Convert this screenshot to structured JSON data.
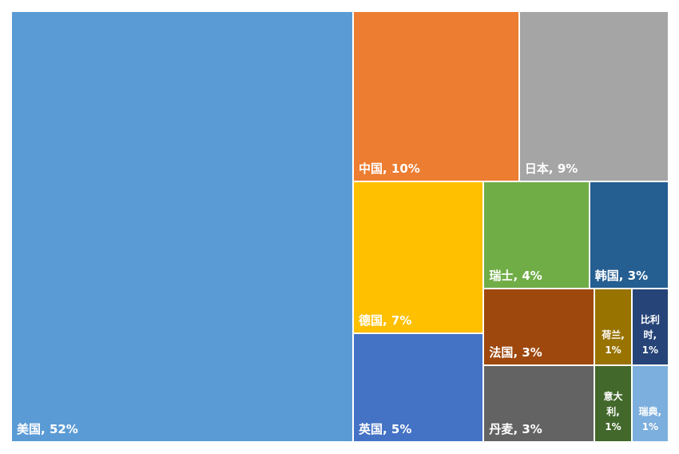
{
  "chart_data": {
    "type": "treemap",
    "categories": [
      "美国",
      "中国",
      "日本",
      "德国",
      "英国",
      "瑞士",
      "韩国",
      "法国",
      "丹麦",
      "荷兰",
      "意大利",
      "比利时",
      "瑞典"
    ],
    "values": [
      52,
      10,
      9,
      7,
      5,
      4,
      3,
      3,
      3,
      1,
      1,
      1,
      1
    ],
    "value_labels": [
      "52%",
      "10%",
      "9%",
      "7%",
      "5%",
      "4%",
      "3%",
      "3%",
      "3%",
      "1%",
      "1%",
      "1%",
      "1%"
    ],
    "label_separator": ", ",
    "colors": [
      "#5b9bd5",
      "#ed7d31",
      "#a5a5a5",
      "#ffc000",
      "#4472c4",
      "#70ad47",
      "#255e91",
      "#9e480e",
      "#636363",
      "#997300",
      "#43682b",
      "#264478",
      "#7cafdd"
    ]
  }
}
